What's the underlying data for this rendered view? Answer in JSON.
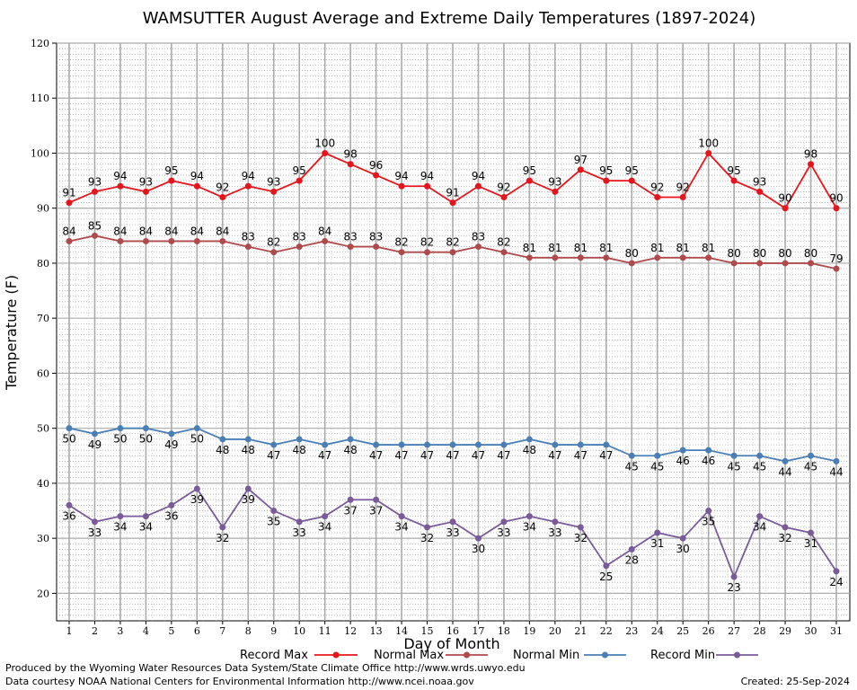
{
  "chart_data": {
    "type": "line",
    "title": "WAMSUTTER August Average and Extreme Daily Temperatures (1897-2024)",
    "xlabel": "Day of Month",
    "ylabel": "Temperature (F)",
    "ylim": [
      15,
      120
    ],
    "yticks": [
      20,
      30,
      40,
      50,
      60,
      70,
      80,
      90,
      100,
      110,
      120
    ],
    "x": [
      1,
      2,
      3,
      4,
      5,
      6,
      7,
      8,
      9,
      10,
      11,
      12,
      13,
      14,
      15,
      16,
      17,
      18,
      19,
      20,
      21,
      22,
      23,
      24,
      25,
      26,
      27,
      28,
      29,
      30,
      31
    ],
    "grid": true,
    "legend_position": "bottom",
    "series": [
      {
        "name": "Record Max",
        "color": "#e8141c",
        "label_position": "above",
        "values": [
          91,
          93,
          94,
          93,
          95,
          94,
          92,
          94,
          93,
          95,
          100,
          98,
          96,
          94,
          94,
          91,
          94,
          92,
          95,
          93,
          97,
          95,
          95,
          92,
          92,
          100,
          95,
          93,
          90,
          98,
          90
        ]
      },
      {
        "name": "Normal Max",
        "color": "#b04a4a",
        "label_position": "above",
        "values": [
          84,
          85,
          84,
          84,
          84,
          84,
          84,
          83,
          82,
          83,
          84,
          83,
          83,
          82,
          82,
          82,
          83,
          82,
          81,
          81,
          81,
          81,
          80,
          81,
          81,
          81,
          80,
          80,
          80,
          80,
          79
        ]
      },
      {
        "name": "Normal Min",
        "color": "#4a7fb5",
        "label_position": "below",
        "values": [
          50,
          49,
          50,
          50,
          49,
          50,
          48,
          48,
          47,
          48,
          47,
          48,
          47,
          47,
          47,
          47,
          47,
          47,
          48,
          47,
          47,
          47,
          45,
          45,
          46,
          46,
          45,
          45,
          44,
          45,
          44
        ]
      },
      {
        "name": "Record Min",
        "color": "#7b5a9c",
        "label_position": "below",
        "values": [
          36,
          33,
          34,
          34,
          36,
          39,
          32,
          39,
          35,
          33,
          34,
          37,
          37,
          34,
          32,
          33,
          30,
          33,
          34,
          33,
          32,
          25,
          28,
          31,
          30,
          35,
          23,
          34,
          32,
          31,
          24
        ]
      }
    ]
  },
  "footer": {
    "produced_by": "Produced by the Wyoming Water Resources Data System/State Climate Office http://www.wrds.uwyo.edu",
    "data_courtesy": "Data courtesy NOAA National Centers for Environmental Information http://www.ncei.noaa.gov",
    "created": "Created:  25-Sep-2024"
  }
}
